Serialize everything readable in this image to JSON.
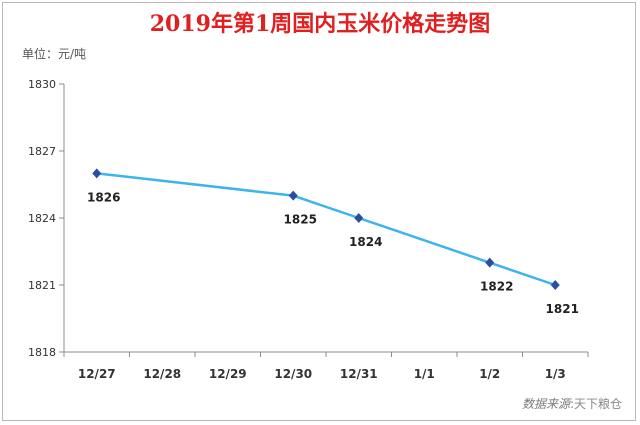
{
  "chart_data": {
    "type": "line",
    "title": "2019年第1周国内玉米价格走势图",
    "unit_label": "单位：元/吨",
    "categories": [
      "12/27",
      "12/28",
      "12/29",
      "12/30",
      "12/31",
      "1/1",
      "1/2",
      "1/3"
    ],
    "series": [
      {
        "points": [
          {
            "x": "12/27",
            "y": 1826
          },
          {
            "x": "12/30",
            "y": 1825
          },
          {
            "x": "12/31",
            "y": 1824
          },
          {
            "x": "1/2",
            "y": 1822
          },
          {
            "x": "1/3",
            "y": 1821
          }
        ],
        "data_labels": [
          "1826",
          "1825",
          "1824",
          "1822",
          "1821"
        ]
      }
    ],
    "y_ticks": [
      1818,
      1821,
      1824,
      1827,
      1830
    ],
    "ylim": [
      1818,
      1830
    ],
    "grid": false,
    "line_color": "#3cb4ec",
    "marker_color": "#2b4f9e",
    "title_color": "#e02020"
  },
  "source": {
    "label": "数据来源",
    "name": ":天下粮仓"
  }
}
